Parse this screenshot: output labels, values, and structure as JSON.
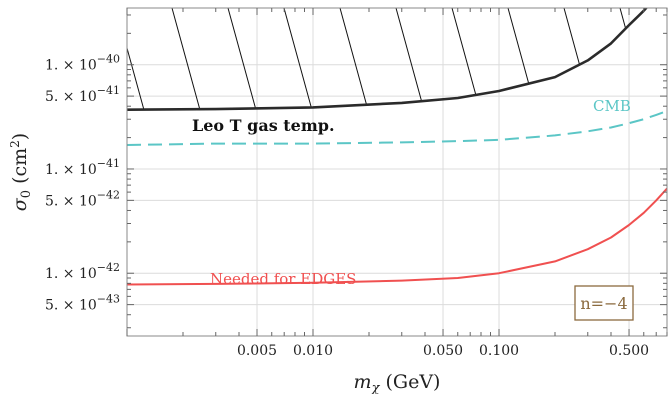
{
  "chart_data": {
    "type": "line",
    "xlabel": "m_χ (GeV)",
    "ylabel": "σ₀ (cm²)",
    "x_scale": "log",
    "y_scale": "log",
    "xlim": [
      0.001,
      0.8
    ],
    "ylim": [
      2.5e-43,
      3.5e-40
    ],
    "grid": true,
    "x_ticks": [
      {
        "value": 0.005,
        "label": "0.005"
      },
      {
        "value": 0.01,
        "label": "0.010"
      },
      {
        "value": 0.05,
        "label": "0.050"
      },
      {
        "value": 0.1,
        "label": "0.100"
      },
      {
        "value": 0.5,
        "label": "0.500"
      }
    ],
    "y_ticks": [
      {
        "value": 1e-40,
        "mant": "1.",
        "exp": "−40"
      },
      {
        "value": 5e-41,
        "mant": "5.",
        "exp": "−41"
      },
      {
        "value": 1e-41,
        "mant": "1.",
        "exp": "−41"
      },
      {
        "value": 5e-42,
        "mant": "5.",
        "exp": "−42"
      },
      {
        "value": 1e-42,
        "mant": "1.",
        "exp": "−42"
      },
      {
        "value": 5e-43,
        "mant": "5.",
        "exp": "−43"
      }
    ],
    "series": [
      {
        "name": "Leo T gas temp.",
        "color": "#2b2b2b",
        "style": "solid",
        "hatched_region_above": true,
        "x": [
          0.001,
          0.003,
          0.01,
          0.03,
          0.06,
          0.1,
          0.2,
          0.3,
          0.4,
          0.5,
          0.6,
          0.7
        ],
        "y": [
          3.7e-41,
          3.75e-41,
          3.9e-41,
          4.3e-41,
          4.8e-41,
          5.6e-41,
          7.6e-41,
          1.1e-40,
          1.6e-40,
          2.4e-40,
          3.3e-40,
          4.5e-40
        ]
      },
      {
        "name": "CMB",
        "color": "#5bc6c6",
        "style": "dashed",
        "x": [
          0.001,
          0.003,
          0.01,
          0.03,
          0.06,
          0.1,
          0.2,
          0.3,
          0.4,
          0.5,
          0.6,
          0.7,
          0.8
        ],
        "y": [
          1.7e-41,
          1.75e-41,
          1.75e-41,
          1.8e-41,
          1.85e-41,
          1.9e-41,
          2.1e-41,
          2.3e-41,
          2.5e-41,
          2.75e-41,
          3e-41,
          3.3e-41,
          3.6e-41
        ]
      },
      {
        "name": "Needed for EDGES",
        "color": "#f05050",
        "style": "solid",
        "x": [
          0.001,
          0.003,
          0.01,
          0.03,
          0.06,
          0.1,
          0.2,
          0.3,
          0.4,
          0.5,
          0.6,
          0.7,
          0.8
        ],
        "y": [
          7.8e-43,
          7.9e-43,
          8.1e-43,
          8.5e-43,
          9e-43,
          1e-42,
          1.3e-42,
          1.7e-42,
          2.2e-42,
          2.9e-42,
          3.8e-42,
          5e-42,
          6.5e-42
        ]
      }
    ],
    "annotations": [
      {
        "text": "Leo T gas temp.",
        "color": "#111111",
        "bold": true
      },
      {
        "text": "CMB",
        "color": "#5bc6c6"
      },
      {
        "text": "Needed for EDGES",
        "color": "#f05050"
      },
      {
        "text": "n=−4",
        "color": "#8b6a3e",
        "boxed": true
      }
    ]
  }
}
